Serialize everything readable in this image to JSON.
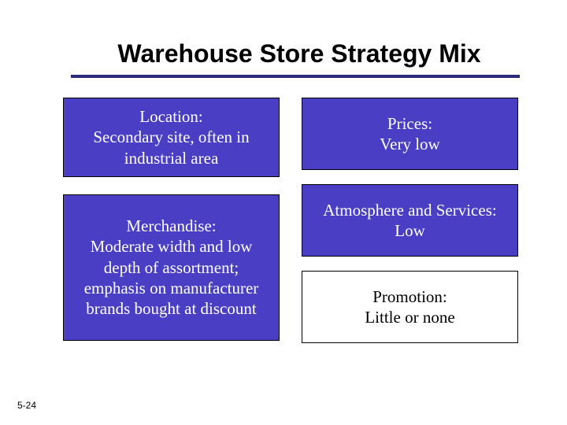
{
  "slide": {
    "title": "Warehouse Store Strategy Mix",
    "footer": "5-24",
    "colors": {
      "box_bg": "#4a3fc4",
      "box_text": "#ffffff",
      "promo_bg": "#ffffff",
      "promo_text": "#000000",
      "rule": "#2a2a7a",
      "title_color": "#000000",
      "background": "#ffffff",
      "border": "#000000"
    },
    "typography": {
      "title_fontsize": 32,
      "title_weight": "bold",
      "title_family": "Arial",
      "box_fontsize": 21,
      "box_family": "Georgia",
      "footer_fontsize": 12
    },
    "boxes": {
      "location": {
        "header": "Location:",
        "body": "Secondary site, often in industrial area"
      },
      "merchandise": {
        "header": "Merchandise:",
        "body": "Moderate width and low depth of assortment; emphasis on manufacturer brands bought at discount"
      },
      "prices": {
        "header": "Prices:",
        "body": "Very low"
      },
      "atmosphere": {
        "header": "Atmosphere and Services:",
        "body": "Low"
      },
      "promotion": {
        "header": "Promotion:",
        "body": "Little or none"
      }
    }
  }
}
